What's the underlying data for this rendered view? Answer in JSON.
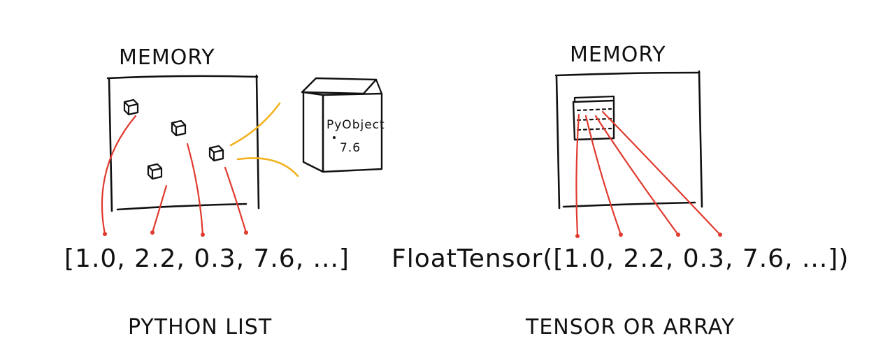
{
  "left_panel": {
    "memory_label": "MEMORY",
    "object_label": "PyObject",
    "object_value": "7.6",
    "sequence": "[1.0, 2.2, 0.3, 7.6, ...]",
    "caption": "PYTHON LIST"
  },
  "right_panel": {
    "memory_label": "MEMORY",
    "sequence": "FloatTensor([1.0, 2.2, 0.3, 7.6, ...])",
    "caption": "TENSOR OR ARRAY"
  },
  "colors": {
    "ink": "#111111",
    "pointer": "#e03a2e",
    "zoom_lines": "#f2b21f"
  }
}
